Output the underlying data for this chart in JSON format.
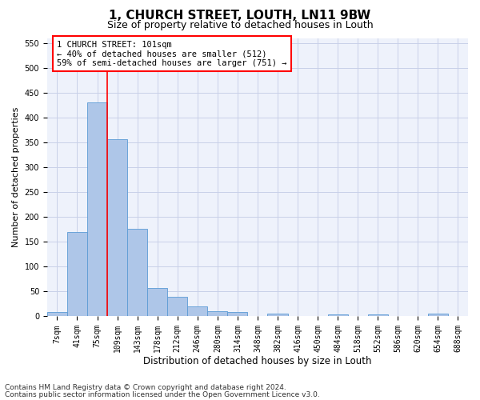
{
  "title": "1, CHURCH STREET, LOUTH, LN11 9BW",
  "subtitle": "Size of property relative to detached houses in Louth",
  "xlabel": "Distribution of detached houses by size in Louth",
  "ylabel": "Number of detached properties",
  "footnote1": "Contains HM Land Registry data © Crown copyright and database right 2024.",
  "footnote2": "Contains public sector information licensed under the Open Government Licence v3.0.",
  "bar_labels": [
    "7sqm",
    "41sqm",
    "75sqm",
    "109sqm",
    "143sqm",
    "178sqm",
    "212sqm",
    "246sqm",
    "280sqm",
    "314sqm",
    "348sqm",
    "382sqm",
    "416sqm",
    "450sqm",
    "484sqm",
    "518sqm",
    "552sqm",
    "586sqm",
    "620sqm",
    "654sqm",
    "688sqm"
  ],
  "bar_values": [
    8,
    169,
    430,
    357,
    176,
    57,
    40,
    20,
    11,
    8,
    0,
    5,
    0,
    0,
    3,
    0,
    4,
    0,
    0,
    5,
    0
  ],
  "bar_color": "#aec6e8",
  "bar_edge_color": "#5b9bd5",
  "ylim": [
    0,
    560
  ],
  "yticks": [
    0,
    50,
    100,
    150,
    200,
    250,
    300,
    350,
    400,
    450,
    500,
    550
  ],
  "vline_x": 2.5,
  "annotation_text": "1 CHURCH STREET: 101sqm\n← 40% of detached houses are smaller (512)\n59% of semi-detached houses are larger (751) →",
  "background_color": "#eef2fb",
  "grid_color": "#c8d0e8",
  "title_fontsize": 11,
  "subtitle_fontsize": 9,
  "xlabel_fontsize": 8.5,
  "ylabel_fontsize": 8,
  "annotation_fontsize": 7.5,
  "tick_fontsize": 7,
  "footnote_fontsize": 6.5
}
